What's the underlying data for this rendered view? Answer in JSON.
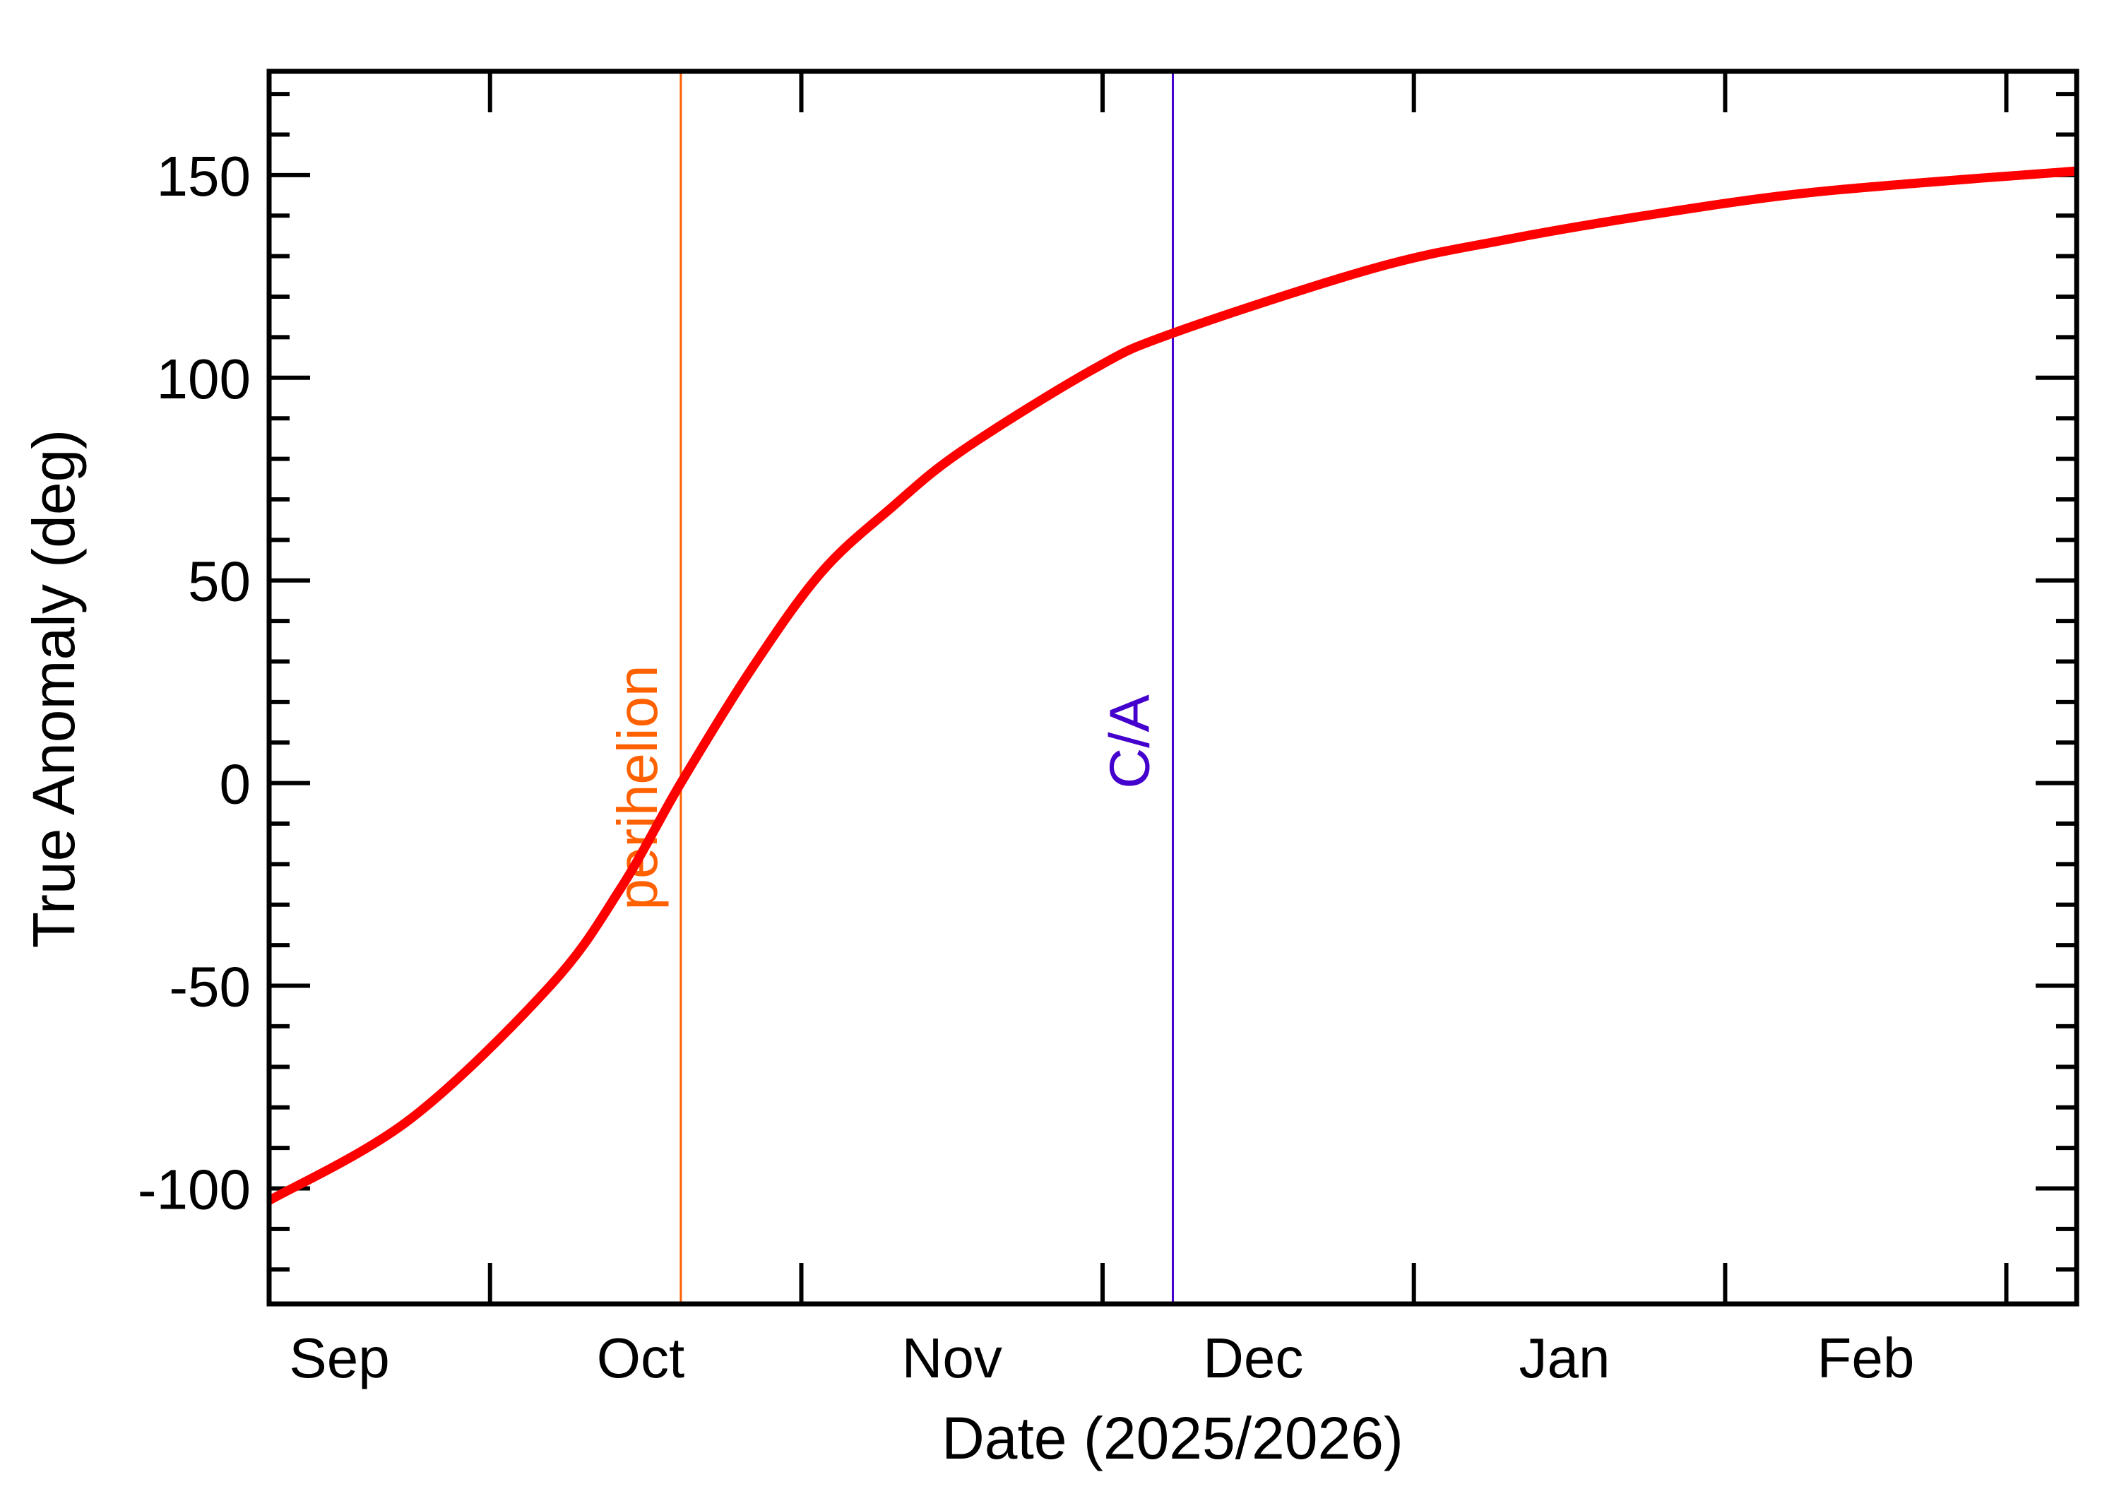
{
  "chart_data": {
    "type": "line",
    "title": "",
    "xlabel": "Date (2025/2026)",
    "ylabel": "True Anomaly (deg)",
    "xlim": [
      "2025-09-09",
      "2026-03-08"
    ],
    "ylim": [
      -128.5,
      175.6
    ],
    "grid": false,
    "x_tick_labels": [
      {
        "label": "Sep",
        "date": "2025-09-16"
      },
      {
        "label": "Oct",
        "date": "2025-10-16"
      },
      {
        "label": "Nov",
        "date": "2025-11-16"
      },
      {
        "label": "Dec",
        "date": "2025-12-16"
      },
      {
        "label": "Jan",
        "date": "2026-01-16"
      },
      {
        "label": "Feb",
        "date": "2026-02-15"
      }
    ],
    "x_major_ticks": [
      "2025-10-01",
      "2025-11-01",
      "2025-12-01",
      "2026-01-01",
      "2026-02-01",
      "2026-03-01"
    ],
    "y_ticks": [
      -100,
      -50,
      0,
      50,
      100,
      150
    ],
    "y_tick_labels": [
      "-100",
      "-50",
      "0",
      "50",
      "100",
      "150"
    ],
    "y_minor_step": 10,
    "series": [
      {
        "color": "#ff0000",
        "x": [
          "2025-09-09",
          "2025-09-23",
          "2025-10-07",
          "2025-10-14",
          "2025-10-20",
          "2025-10-27",
          "2025-11-03",
          "2025-11-10",
          "2025-11-17",
          "2025-11-30",
          "2025-12-08",
          "2025-12-28",
          "2026-01-10",
          "2026-01-24",
          "2026-02-07",
          "2026-02-20",
          "2026-03-08"
        ],
        "y": [
          -103,
          -83,
          -50,
          -26,
          0,
          28,
          52,
          68,
          82,
          102,
          111,
          127,
          134,
          140,
          145,
          148,
          151
        ]
      }
    ],
    "annotations": [
      {
        "label": "perihelion",
        "date": "2025-10-20",
        "color": "#ff6000"
      },
      {
        "label": "C/A",
        "date": "2025-12-08",
        "color": "#4400cc"
      }
    ]
  }
}
